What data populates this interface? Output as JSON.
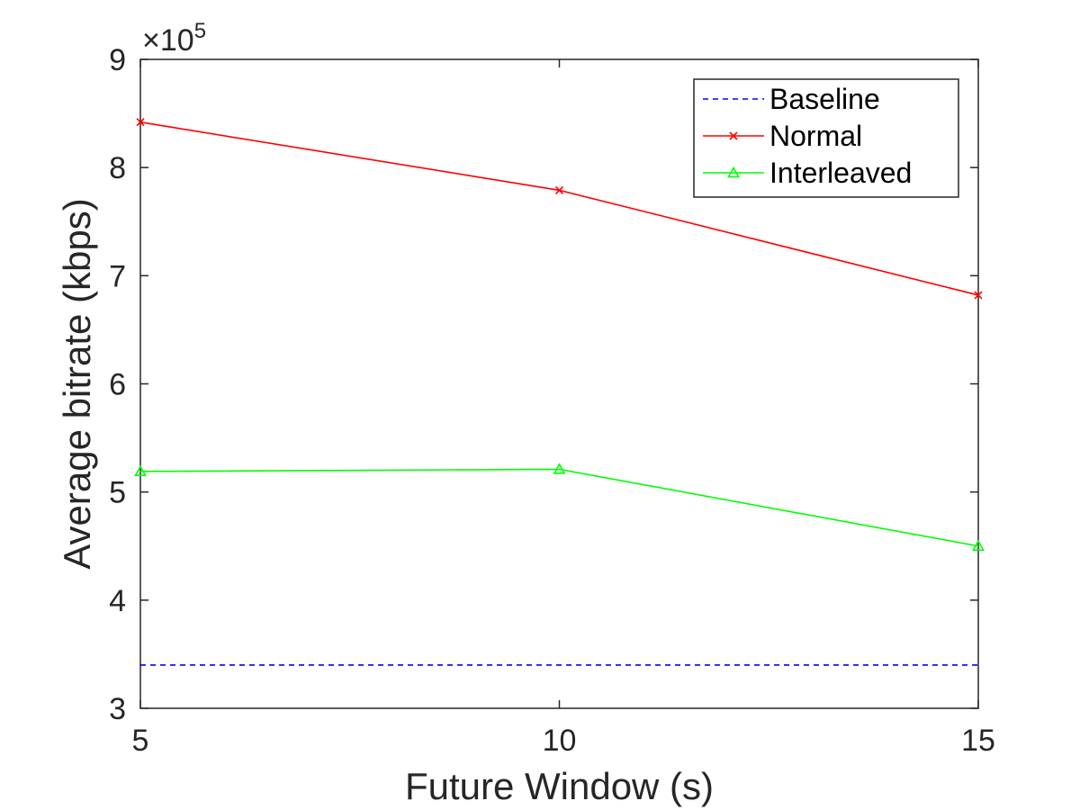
{
  "chart_data": {
    "type": "line",
    "title": "",
    "xlabel": "Future Window (s)",
    "ylabel": "Average bitrate (kbps)",
    "x": [
      5,
      10,
      15
    ],
    "xticks": [
      5,
      10,
      15
    ],
    "xtick_labels": [
      "5",
      "10",
      "15"
    ],
    "xlim": [
      5,
      15
    ],
    "ylim": [
      300000,
      900000
    ],
    "yticks": [
      300000,
      400000,
      500000,
      600000,
      700000,
      800000,
      900000
    ],
    "ytick_labels": [
      "3",
      "4",
      "5",
      "6",
      "7",
      "8",
      "9"
    ],
    "y_exponent": {
      "base": "10",
      "power": "5",
      "prefix": "×"
    },
    "grid": false,
    "legend_position": "top-right",
    "series": [
      {
        "name": "Baseline",
        "values": [
          340000,
          340000,
          340000
        ],
        "color": "#0000ff",
        "style": "dashed",
        "marker": "none"
      },
      {
        "name": "Normal",
        "values": [
          842000,
          779000,
          682000
        ],
        "color": "#ff0000",
        "style": "solid",
        "marker": "x"
      },
      {
        "name": "Interleaved",
        "values": [
          519000,
          521000,
          450000
        ],
        "color": "#00ff00",
        "style": "solid",
        "marker": "triangle"
      }
    ]
  }
}
